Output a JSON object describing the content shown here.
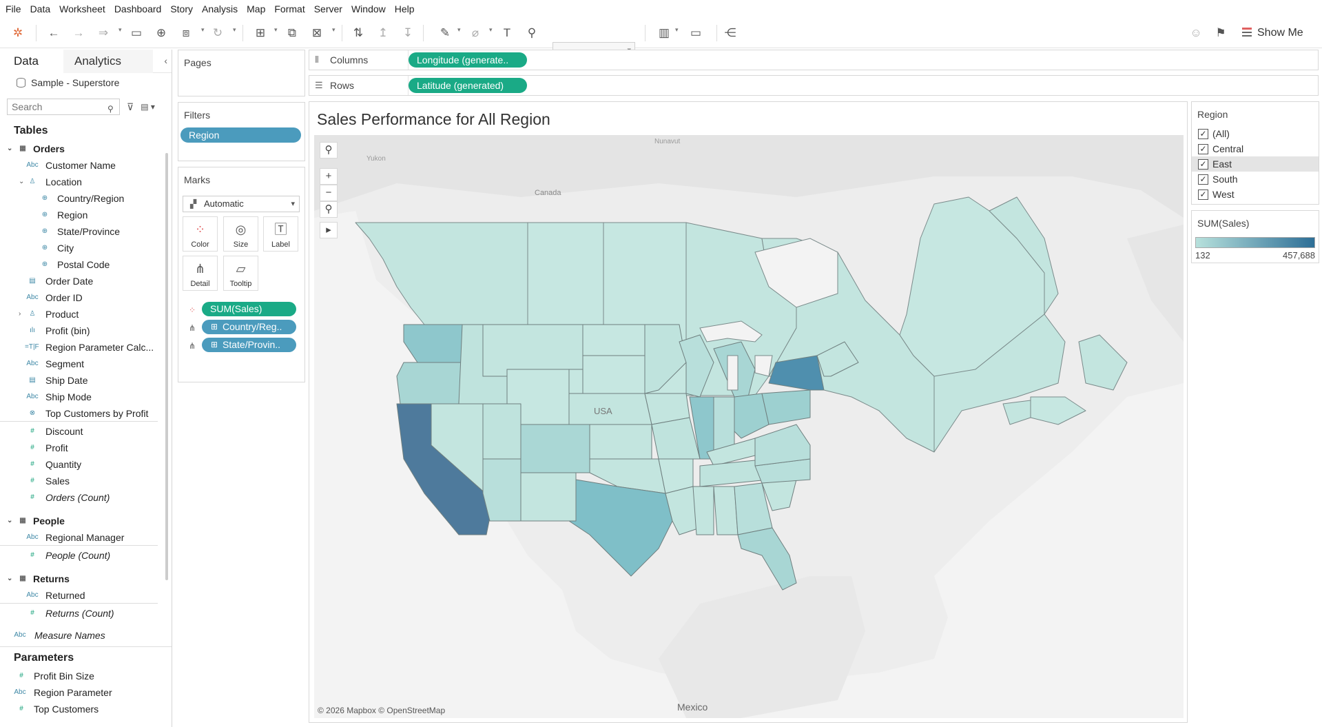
{
  "menu": [
    "File",
    "Data",
    "Worksheet",
    "Dashboard",
    "Story",
    "Analysis",
    "Map",
    "Format",
    "Server",
    "Window",
    "Help"
  ],
  "toolbar": {
    "show_me": "Show Me"
  },
  "left_pane": {
    "tab_data": "Data",
    "tab_analytics": "Analytics",
    "datasource": "Sample - Superstore",
    "search_placeholder": "Search",
    "tables_header": "Tables",
    "orders": {
      "label": "Orders",
      "customer_name": "Customer Name",
      "location": "Location",
      "country_region": "Country/Region",
      "region": "Region",
      "state_province": "State/Province",
      "city": "City",
      "postal_code": "Postal Code",
      "order_date": "Order Date",
      "order_id": "Order ID",
      "product": "Product",
      "profit_bin": "Profit (bin)",
      "region_param_calc": "Region Parameter Calc...",
      "segment": "Segment",
      "ship_date": "Ship Date",
      "ship_mode": "Ship Mode",
      "top_customers_by_profit": "Top Customers by Profit",
      "discount": "Discount",
      "profit": "Profit",
      "quantity": "Quantity",
      "sales": "Sales",
      "orders_count": "Orders (Count)"
    },
    "people": {
      "label": "People",
      "regional_manager": "Regional Manager",
      "people_count": "People (Count)"
    },
    "returns": {
      "label": "Returns",
      "returned": "Returned",
      "returns_count": "Returns (Count)"
    },
    "measure_names": "Measure Names",
    "parameters_header": "Parameters",
    "parameters": {
      "profit_bin_size": "Profit Bin Size",
      "region_parameter": "Region Parameter",
      "top_customers": "Top Customers"
    }
  },
  "pages": {
    "title": "Pages"
  },
  "filters": {
    "title": "Filters",
    "region_pill": "Region"
  },
  "marks": {
    "title": "Marks",
    "type": "Automatic",
    "color": "Color",
    "size": "Size",
    "label": "Label",
    "detail": "Detail",
    "tooltip": "Tooltip",
    "pill_sales": "SUM(Sales)",
    "pill_country": "Country/Reg..",
    "pill_state": "State/Provin.."
  },
  "columns": {
    "label": "Columns",
    "pill": "Longitude (generate.."
  },
  "rows": {
    "label": "Rows",
    "pill": "Latitude (generated)"
  },
  "viz": {
    "title": "Sales Performance for All Region",
    "attribution": "© 2026 Mapbox © OpenStreetMap",
    "map_labels": {
      "mexico": "Mexico",
      "usa": "USA",
      "canada": "Canada",
      "nunavut": "Nunavut",
      "yukon": "Yukon"
    }
  },
  "region_filter": {
    "title": "Region",
    "items": [
      {
        "label": "(All)",
        "checked": true
      },
      {
        "label": "Central",
        "checked": true
      },
      {
        "label": "East",
        "checked": true
      },
      {
        "label": "South",
        "checked": true
      },
      {
        "label": "West",
        "checked": true
      }
    ]
  },
  "legend": {
    "title": "SUM(Sales)",
    "min": "132",
    "max": "457,688",
    "color_low": "#b7e1dc",
    "color_high": "#2d6e96"
  }
}
